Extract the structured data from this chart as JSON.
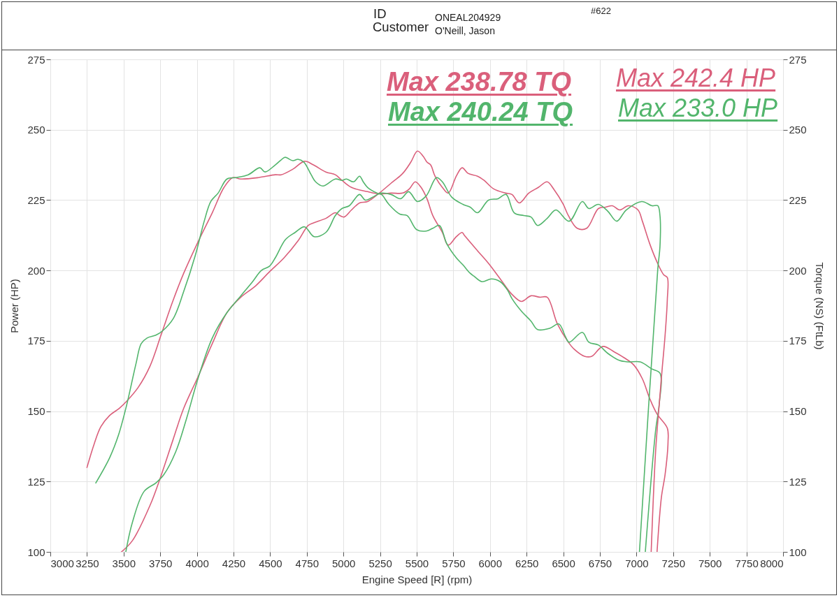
{
  "chart_data": {
    "type": "line",
    "xlabel": "Engine Speed [R] (rpm)",
    "ylabel": "Power (HP)",
    "y2label": "Torque (NS) (FtLb)",
    "xlim": [
      3000,
      8000
    ],
    "xticks": [
      3000,
      3250,
      3500,
      3750,
      4000,
      4250,
      4500,
      4750,
      5000,
      5250,
      5500,
      5750,
      6000,
      6250,
      6500,
      6750,
      7000,
      7250,
      7500,
      7750,
      8000
    ],
    "ylim": [
      100,
      275
    ],
    "yticks": [
      100,
      125,
      150,
      175,
      200,
      225,
      250,
      275
    ],
    "y2lim": [
      100,
      275
    ],
    "y2ticks": [
      100,
      125,
      150,
      175,
      200,
      225,
      250,
      275
    ],
    "grid": true,
    "line_style": "solid",
    "annotations": [
      "Max 238.78 TQ",
      "Max 240.24 TQ",
      "Max 242.4 HP",
      "Max 233.0 HP",
      "ID",
      "ONEAL204929",
      "Customer",
      "O'Neill, Jason",
      "#622"
    ],
    "series": [
      {
        "color": "#da5f7b",
        "axis": "y2",
        "x": [
          3250,
          3300,
          3345,
          3405,
          3470,
          3520,
          3600,
          3680,
          3755,
          3835,
          3910,
          4020,
          4105,
          4185,
          4245,
          4300,
          4420,
          4535,
          4575,
          4655,
          4735,
          4795,
          4880,
          4945,
          4990,
          5055,
          5165,
          5245,
          5325,
          5405,
          5450,
          5490,
          5530,
          5570,
          5610,
          5675,
          5715,
          5770,
          5810,
          5825,
          5915,
          5990,
          6070,
          6150,
          6215,
          6280,
          6340,
          6390,
          6460,
          6535,
          6575,
          6645,
          6695,
          6770,
          6850,
          6915,
          6980,
          7040,
          7090,
          7140,
          7210,
          7215,
          7195,
          7170,
          7140
        ],
        "values": [
          130,
          138.5,
          144.5,
          148.5,
          151,
          153.5,
          158.5,
          166,
          177,
          189,
          199,
          211.5,
          220.5,
          229.5,
          233,
          232.5,
          233,
          234,
          234,
          236,
          238.8,
          237.5,
          235,
          234,
          232,
          229.5,
          228,
          227.2,
          227.5,
          227.5,
          229,
          231.5,
          229.5,
          225.5,
          219.5,
          213.5,
          209,
          212,
          213.5,
          212.5,
          207,
          202.5,
          197,
          191.5,
          189,
          191,
          190.5,
          190.5,
          181,
          174.5,
          172,
          169.5,
          169.5,
          173,
          171,
          169,
          166.5,
          161.5,
          154.5,
          149,
          144,
          139,
          127.5,
          119.5,
          100
        ]
      },
      {
        "color": "#52b56c",
        "axis": "y2",
        "x": [
          3310,
          3405,
          3465,
          3520,
          3585,
          3620,
          3660,
          3720,
          3765,
          3840,
          3910,
          3990,
          4050,
          4095,
          4145,
          4205,
          4265,
          4350,
          4430,
          4465,
          4535,
          4600,
          4615,
          4655,
          4690,
          4730,
          4780,
          4810,
          4860,
          4945,
          4990,
          5020,
          5070,
          5110,
          5135,
          5165,
          5230,
          5260,
          5310,
          5385,
          5435,
          5500,
          5565,
          5610,
          5655,
          5705,
          5770,
          5815,
          5865,
          5890,
          5945,
          6010,
          6070,
          6120,
          6150,
          6215,
          6280,
          6325,
          6410,
          6470,
          6515,
          6540,
          6630,
          6675,
          6740,
          6805,
          6885,
          6945,
          7025,
          7105,
          7160,
          7155,
          7130,
          7060
        ],
        "values": [
          124.5,
          133.5,
          141.5,
          152,
          167,
          174,
          176,
          177,
          178.5,
          183,
          192.5,
          205.5,
          217.5,
          224.5,
          227.5,
          232.5,
          233,
          234,
          236.5,
          235,
          237.5,
          240.2,
          240,
          239,
          239.5,
          238.5,
          234,
          231.5,
          230,
          232.5,
          232,
          232.5,
          231.5,
          233.5,
          231.5,
          229.5,
          227.5,
          227,
          223.5,
          220,
          219.5,
          214.5,
          214,
          215,
          216,
          209.5,
          204.5,
          202,
          199,
          198,
          196,
          197,
          196,
          193,
          190,
          185.5,
          182,
          179,
          179.5,
          181,
          176.5,
          174.5,
          178,
          174.5,
          173.5,
          170.5,
          168,
          167.5,
          167.5,
          165,
          163.5,
          152.5,
          143,
          100
        ]
      },
      {
        "color": "#da5f7b",
        "x": [
          3485,
          3560,
          3680,
          3755,
          3835,
          3910,
          4010,
          4105,
          4205,
          4300,
          4400,
          4495,
          4595,
          4690,
          4760,
          4800,
          4880,
          4945,
          4975,
          5005,
          5055,
          5110,
          5165,
          5245,
          5325,
          5405,
          5460,
          5505,
          5545,
          5570,
          5595,
          5625,
          5675,
          5715,
          5770,
          5810,
          5850,
          5915,
          5960,
          6025,
          6105,
          6150,
          6200,
          6265,
          6330,
          6390,
          6440,
          6500,
          6535,
          6595,
          6660,
          6740,
          6790,
          6835,
          6885,
          6945,
          7010,
          7040,
          7090,
          7140,
          7185,
          7210,
          7210,
          7195,
          7175,
          7155,
          7130,
          7100
        ],
        "values": [
          100,
          104,
          116.5,
          127,
          139.5,
          151,
          162.5,
          174,
          185,
          190.5,
          194.5,
          199.5,
          204.5,
          210.5,
          216,
          217,
          218.5,
          220.5,
          219.5,
          219,
          221.5,
          224,
          224.5,
          227.5,
          231,
          234.5,
          238.5,
          242.4,
          240.5,
          238.5,
          237.5,
          233.5,
          229.5,
          227.5,
          233.5,
          236.5,
          234.5,
          233.5,
          232,
          229,
          227.5,
          227,
          224,
          227.5,
          229.5,
          231.5,
          228.5,
          223.5,
          219.5,
          215,
          215,
          222,
          222.5,
          223,
          221.5,
          223,
          221.5,
          217.5,
          209.5,
          203,
          198.5,
          197.5,
          189.5,
          177,
          165,
          152.5,
          135.5,
          100
        ]
      },
      {
        "color": "#52b56c",
        "x": [
          3515,
          3560,
          3640,
          3720,
          3775,
          3855,
          3930,
          4010,
          4105,
          4205,
          4300,
          4380,
          4440,
          4495,
          4535,
          4605,
          4670,
          4735,
          4800,
          4880,
          4945,
          4990,
          5040,
          5110,
          5150,
          5215,
          5255,
          5325,
          5390,
          5445,
          5505,
          5565,
          5635,
          5675,
          5740,
          5815,
          5865,
          5915,
          5990,
          6055,
          6110,
          6165,
          6230,
          6280,
          6325,
          6390,
          6450,
          6540,
          6630,
          6675,
          6740,
          6805,
          6865,
          6930,
          7035,
          7105,
          7145,
          7160,
          7160,
          7145,
          7020
        ],
        "values": [
          100,
          110.5,
          121.5,
          124.5,
          127.5,
          135.5,
          147.5,
          162,
          176,
          185,
          191,
          196,
          200,
          201.5,
          204.5,
          211,
          213.5,
          215.5,
          212,
          213.5,
          219.5,
          222,
          223,
          227,
          225,
          226.5,
          227.5,
          227,
          225.5,
          228,
          224.5,
          226.5,
          233.0,
          231.5,
          226,
          223.5,
          222.5,
          220.5,
          225,
          225.5,
          227,
          220.5,
          219.5,
          219,
          216,
          218.5,
          221.5,
          217.5,
          224.5,
          222,
          223.5,
          221,
          217.5,
          221.5,
          224.5,
          223,
          223,
          219.5,
          208.5,
          200.5,
          100
        ]
      }
    ]
  }
}
